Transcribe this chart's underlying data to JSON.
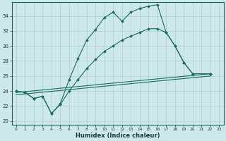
{
  "xlabel": "Humidex (Indice chaleur)",
  "bg_color": "#cce8e8",
  "line_color": "#1a6b5a",
  "grid_color": "#aacfcf",
  "xlim": [
    -0.5,
    23.5
  ],
  "ylim": [
    19.5,
    35.8
  ],
  "xticks": [
    0,
    1,
    2,
    3,
    4,
    5,
    6,
    7,
    8,
    9,
    10,
    11,
    12,
    13,
    14,
    15,
    16,
    17,
    18,
    19,
    20,
    21,
    22,
    23
  ],
  "yticks": [
    20,
    22,
    24,
    26,
    28,
    30,
    32,
    34
  ],
  "line1_x": [
    0,
    1,
    2,
    3,
    4,
    5,
    6,
    7,
    8,
    9,
    10,
    11,
    12,
    13,
    14,
    15,
    16,
    17,
    18,
    19,
    20,
    22
  ],
  "line1_y": [
    24.0,
    23.8,
    23.0,
    23.3,
    21.0,
    22.3,
    25.5,
    28.3,
    30.8,
    32.2,
    33.8,
    34.5,
    33.3,
    34.5,
    35.0,
    35.3,
    35.5,
    31.8,
    30.0,
    27.8,
    26.3,
    26.3
  ],
  "line2_x": [
    0,
    1,
    2,
    3,
    4,
    5,
    6,
    7,
    8,
    9,
    10,
    11,
    12,
    13,
    14,
    15,
    16,
    17,
    18,
    19,
    20,
    22
  ],
  "line2_y": [
    24.0,
    23.8,
    23.0,
    23.3,
    21.0,
    22.2,
    24.0,
    25.5,
    27.0,
    28.2,
    29.3,
    30.0,
    30.8,
    31.3,
    31.8,
    32.3,
    32.3,
    31.8,
    30.0,
    27.8,
    26.3,
    26.3
  ],
  "line3_x": [
    0,
    22
  ],
  "line3_y": [
    23.8,
    26.3
  ],
  "line4_x": [
    0,
    22
  ],
  "line4_y": [
    23.5,
    26.0
  ]
}
